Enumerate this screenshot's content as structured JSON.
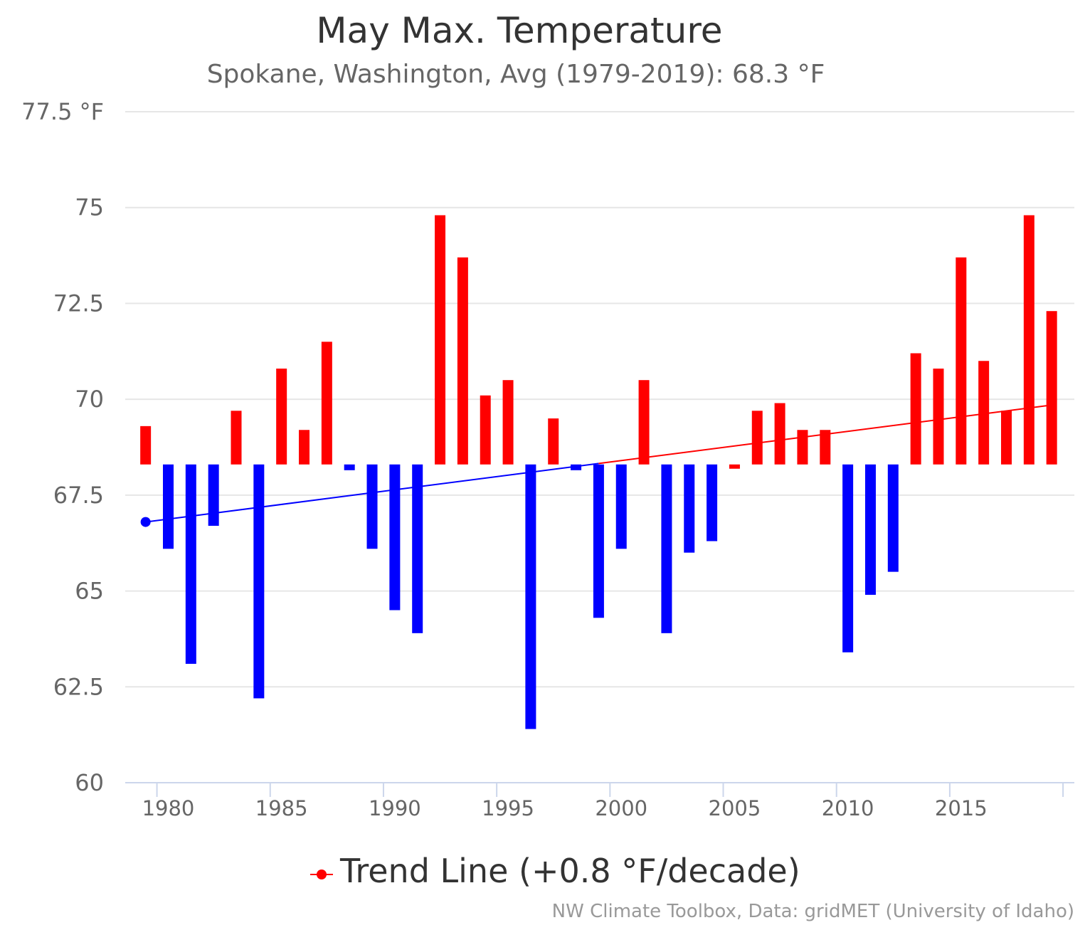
{
  "chart_data": {
    "type": "bar",
    "title": "May Max. Temperature",
    "subtitle": "Spokane, Washington, Avg (1979-2019): 68.3 °F",
    "baseline": 68.3,
    "ylim": [
      60,
      77.5
    ],
    "yticks": [
      {
        "value": 60,
        "label": "60"
      },
      {
        "value": 62.5,
        "label": "62.5"
      },
      {
        "value": 65,
        "label": "65"
      },
      {
        "value": 67.5,
        "label": "67.5"
      },
      {
        "value": 70,
        "label": "70"
      },
      {
        "value": 72.5,
        "label": "72.5"
      },
      {
        "value": 75,
        "label": "75"
      },
      {
        "value": 77.5,
        "label": "77.5 °F"
      }
    ],
    "xlim": [
      1978.1,
      2020
    ],
    "xticks": [
      {
        "value": 1980,
        "label": "1980"
      },
      {
        "value": 1985,
        "label": "1985"
      },
      {
        "value": 1990,
        "label": "1990"
      },
      {
        "value": 1995,
        "label": "1995"
      },
      {
        "value": 2000,
        "label": "2000"
      },
      {
        "value": 2005,
        "label": "2005"
      },
      {
        "value": 2010,
        "label": "2010"
      },
      {
        "value": 2015,
        "label": "2015"
      }
    ],
    "x": [
      1979,
      1980,
      1981,
      1982,
      1983,
      1984,
      1985,
      1986,
      1987,
      1988,
      1989,
      1990,
      1991,
      1992,
      1993,
      1994,
      1995,
      1996,
      1997,
      1998,
      1999,
      2000,
      2001,
      2002,
      2003,
      2004,
      2005,
      2006,
      2007,
      2008,
      2009,
      2010,
      2011,
      2012,
      2013,
      2014,
      2015,
      2016,
      2017,
      2018,
      2019
    ],
    "values": [
      69.3,
      66.1,
      63.1,
      66.7,
      69.7,
      62.2,
      70.8,
      69.2,
      71.5,
      68.15,
      66.1,
      64.5,
      63.9,
      74.8,
      73.7,
      70.1,
      70.5,
      61.4,
      69.5,
      68.15,
      64.3,
      66.1,
      70.5,
      63.9,
      66.0,
      66.3,
      68.3,
      69.7,
      69.9,
      69.2,
      69.2,
      63.4,
      64.9,
      65.5,
      71.2,
      70.8,
      73.7,
      71.0,
      69.7,
      74.8,
      72.3
    ],
    "colors": {
      "above": "#ff0000",
      "below": "#0000ff",
      "grid": "#e6e6e6",
      "axis": "#ccd6eb"
    },
    "trend": {
      "label": "Trend Line (+0.8 °F/decade)",
      "start": [
        1979,
        66.8
      ],
      "end": [
        2019,
        69.85
      ],
      "split_x": 1999,
      "color_before": "#0000ff",
      "color_after": "#ff0000"
    },
    "legend_position": "bottom-center",
    "credits": "NW Climate Toolbox, Data: gridMET (University of Idaho)"
  }
}
